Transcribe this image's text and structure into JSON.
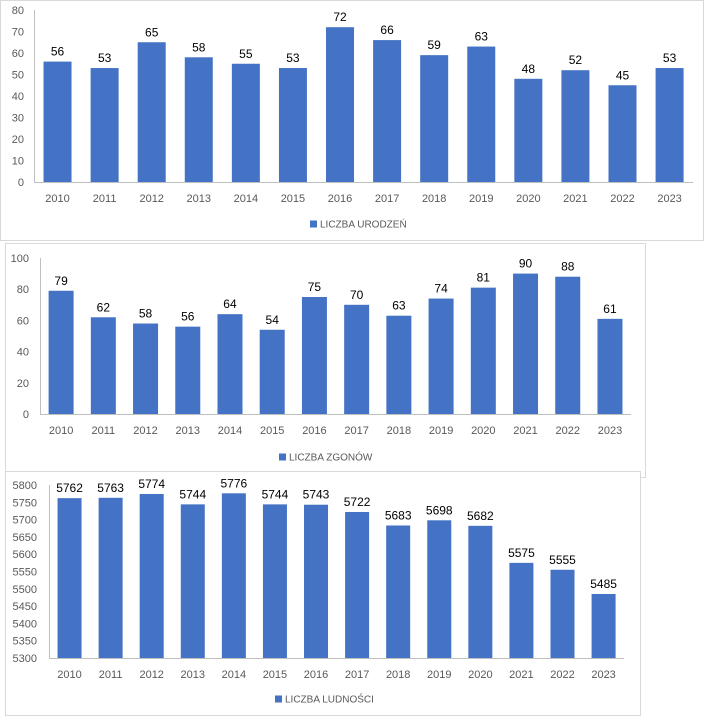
{
  "colors": {
    "bar": "#4472C4",
    "axis_text": "#595959",
    "data_label": "#000000",
    "axis_line": "#BFBFBF",
    "frame": "#D9D9D9",
    "background": "#FFFFFF"
  },
  "chart_data": [
    {
      "type": "bar",
      "title": "",
      "xlabel": "",
      "ylabel": "",
      "categories": [
        "2010",
        "2011",
        "2012",
        "2013",
        "2014",
        "2015",
        "2016",
        "2017",
        "2018",
        "2019",
        "2020",
        "2021",
        "2022",
        "2023"
      ],
      "series": [
        {
          "name": "LICZBA URODZEŃ",
          "values": [
            56,
            53,
            65,
            58,
            55,
            53,
            72,
            66,
            59,
            63,
            48,
            52,
            45,
            53
          ]
        }
      ],
      "ylim": [
        0,
        80
      ],
      "yticks": [
        0,
        10,
        20,
        30,
        40,
        50,
        60,
        70,
        80
      ],
      "grid": false,
      "data_labels": true,
      "legend": "bottom"
    },
    {
      "type": "bar",
      "title": "",
      "xlabel": "",
      "ylabel": "",
      "categories": [
        "2010",
        "2011",
        "2012",
        "2013",
        "2014",
        "2015",
        "2016",
        "2017",
        "2018",
        "2019",
        "2020",
        "2021",
        "2022",
        "2023"
      ],
      "series": [
        {
          "name": "LICZBA ZGONÓW",
          "values": [
            79,
            62,
            58,
            56,
            64,
            54,
            75,
            70,
            63,
            74,
            81,
            90,
            88,
            61
          ]
        }
      ],
      "ylim": [
        0,
        100
      ],
      "yticks": [
        0,
        20,
        40,
        60,
        80,
        100
      ],
      "grid": false,
      "data_labels": true,
      "legend": "bottom"
    },
    {
      "type": "bar",
      "title": "",
      "xlabel": "",
      "ylabel": "",
      "categories": [
        "2010",
        "2011",
        "2012",
        "2013",
        "2014",
        "2015",
        "2016",
        "2017",
        "2018",
        "2019",
        "2020",
        "2021",
        "2022",
        "2023"
      ],
      "series": [
        {
          "name": "LICZBA LUDNOŚCI",
          "values": [
            5762,
            5763,
            5774,
            5744,
            5776,
            5744,
            5743,
            5722,
            5683,
            5698,
            5682,
            5575,
            5555,
            5485
          ]
        }
      ],
      "ylim": [
        5300,
        5800
      ],
      "yticks": [
        5300,
        5350,
        5400,
        5450,
        5500,
        5550,
        5600,
        5650,
        5700,
        5750,
        5800
      ],
      "grid": false,
      "data_labels": true,
      "legend": "bottom"
    }
  ]
}
